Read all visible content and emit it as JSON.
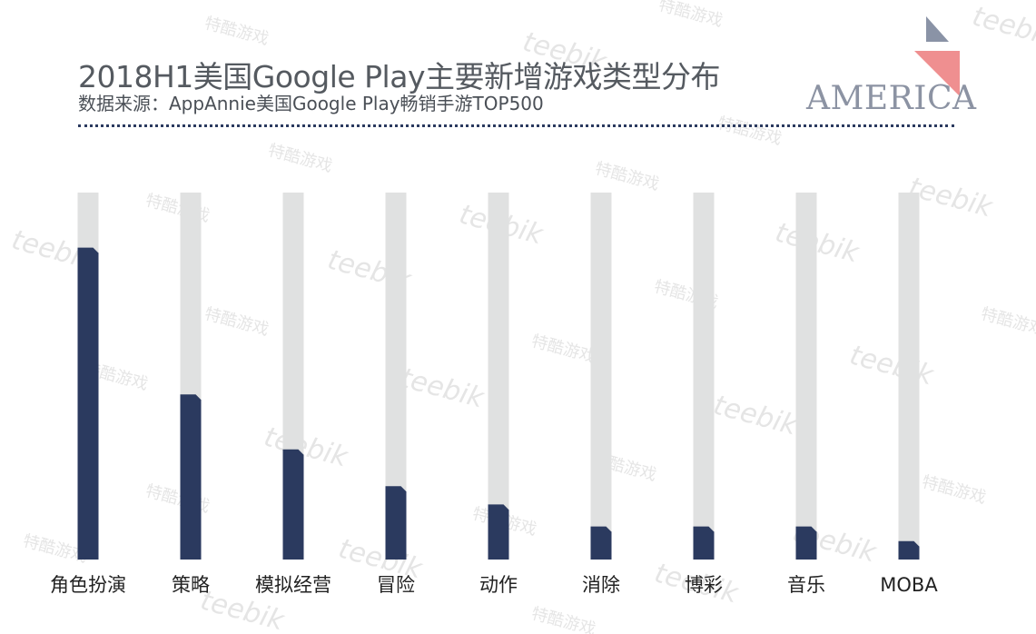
{
  "header": {
    "title": "2018H1美国Google Play主要新增游戏类型分布",
    "subtitle": "数据来源：AppAnnie美国Google Play畅销手游TOP500"
  },
  "logo": {
    "text": "AMERICA"
  },
  "watermark": {
    "en": "teebik",
    "cn": "特酷游戏"
  },
  "colors": {
    "bar": "#2b3a5f",
    "track": "#e0e1e1",
    "accent_pink": "#ef8f90",
    "accent_slate": "#8a93a6"
  },
  "chart_data": {
    "type": "bar",
    "categories": [
      "角色扮演",
      "策略",
      "模拟经营",
      "冒险",
      "动作",
      "消除",
      "博彩",
      "音乐",
      "MOBA"
    ],
    "values": [
      85,
      45,
      30,
      20,
      15,
      9,
      9,
      9,
      5
    ],
    "ylim": [
      0,
      100
    ],
    "title": "2018H1美国Google Play主要新增游戏类型分布",
    "grid": false,
    "legend": "none"
  }
}
